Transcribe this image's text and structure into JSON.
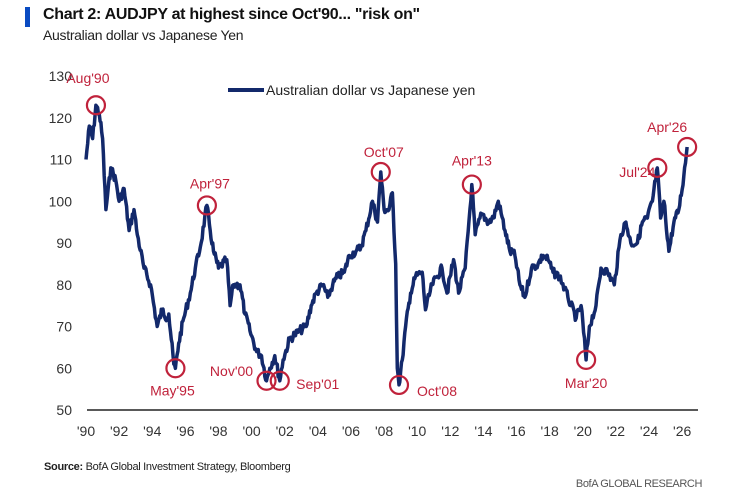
{
  "header": {
    "title": "Chart 2: AUDJPY at highest since Oct'90... \"risk on\"",
    "subtitle": "Australian dollar vs Japanese Yen"
  },
  "footer": {
    "source_label": "Source:",
    "source_text": " BofA Global Investment Strategy, Bloomberg",
    "brand": "BofA GLOBAL RESEARCH"
  },
  "colors": {
    "line": "#13296b",
    "annotation": "#c0223b",
    "accent_bar": "#0a4bc2"
  },
  "chart_data": {
    "type": "line",
    "title": "Chart 2: AUDJPY at highest since Oct'90... \"risk on\"",
    "subtitle": "Australian dollar vs Japanese Yen",
    "xlabel": "",
    "ylabel": "",
    "ylim": [
      50,
      130
    ],
    "xlim": [
      1990,
      2026.5
    ],
    "yticks": [
      50,
      60,
      70,
      80,
      90,
      100,
      110,
      120,
      130
    ],
    "xticks": [
      {
        "x": 1990,
        "label": "'90"
      },
      {
        "x": 1992,
        "label": "'92"
      },
      {
        "x": 1994,
        "label": "'94"
      },
      {
        "x": 1996,
        "label": "'96"
      },
      {
        "x": 1998,
        "label": "'98"
      },
      {
        "x": 2000,
        "label": "'00"
      },
      {
        "x": 2002,
        "label": "'02"
      },
      {
        "x": 2004,
        "label": "'04"
      },
      {
        "x": 2006,
        "label": "'06"
      },
      {
        "x": 2008,
        "label": "'08"
      },
      {
        "x": 2010,
        "label": "'10"
      },
      {
        "x": 2012,
        "label": "'12"
      },
      {
        "x": 2014,
        "label": "'14"
      },
      {
        "x": 2016,
        "label": "'16"
      },
      {
        "x": 2018,
        "label": "'18"
      },
      {
        "x": 2020,
        "label": "'20"
      },
      {
        "x": 2022,
        "label": "'22"
      },
      {
        "x": 2024,
        "label": "'24"
      },
      {
        "x": 2026,
        "label": "'26"
      }
    ],
    "grid": false,
    "legend": "top-center",
    "series": [
      {
        "name": "Australian dollar vs Japanese yen",
        "x": [
          1990.0,
          1990.2,
          1990.4,
          1990.6,
          1990.8,
          1991.0,
          1991.2,
          1991.5,
          1991.8,
          1992.0,
          1992.3,
          1992.6,
          1992.9,
          1993.1,
          1993.5,
          1993.9,
          1994.3,
          1994.6,
          1994.9,
          1995.0,
          1995.3,
          1995.4,
          1995.6,
          1995.9,
          1996.3,
          1996.6,
          1996.9,
          1997.3,
          1997.5,
          1997.7,
          1998.0,
          1998.5,
          1998.7,
          1998.9,
          1999.3,
          1999.6,
          1999.9,
          2000.3,
          2000.6,
          2000.9,
          2001.1,
          2001.4,
          2001.7,
          2001.9,
          2002.3,
          2002.6,
          2002.9,
          2003.3,
          2003.6,
          2003.9,
          2004.3,
          2004.6,
          2004.9,
          2005.2,
          2005.6,
          2005.9,
          2006.3,
          2006.6,
          2006.9,
          2007.3,
          2007.6,
          2007.8,
          2008.0,
          2008.3,
          2008.5,
          2008.7,
          2008.8,
          2008.9,
          2009.1,
          2009.3,
          2009.6,
          2009.9,
          2010.3,
          2010.5,
          2010.9,
          2011.2,
          2011.5,
          2011.8,
          2012.2,
          2012.5,
          2012.9,
          2013.3,
          2013.5,
          2013.9,
          2014.3,
          2014.6,
          2014.9,
          2015.3,
          2015.6,
          2015.9,
          2016.2,
          2016.5,
          2016.9,
          2017.3,
          2017.6,
          2017.9,
          2018.2,
          2018.6,
          2018.9,
          2019.1,
          2019.6,
          2019.9,
          2020.2,
          2020.4,
          2020.8,
          2021.1,
          2021.5,
          2021.9,
          2022.3,
          2022.6,
          2022.9,
          2023.3,
          2023.6,
          2023.9,
          2024.2,
          2024.5,
          2024.7,
          2024.9,
          2025.2,
          2025.5,
          2025.8,
          2026.1,
          2026.3
        ],
        "values": [
          110,
          118,
          115,
          123,
          121,
          115,
          98,
          108,
          105,
          100,
          103,
          93,
          98,
          92,
          84,
          80,
          70,
          74,
          72,
          73,
          61,
          60,
          66,
          72,
          78,
          84,
          89,
          99,
          93,
          88,
          84,
          86,
          75,
          80,
          80,
          73,
          69,
          64,
          63,
          57,
          60,
          63,
          57,
          62,
          67,
          68,
          69,
          70,
          75,
          78,
          80,
          77,
          80,
          82,
          83,
          87,
          88,
          89,
          93,
          100,
          95,
          107,
          98,
          98,
          102,
          85,
          60,
          56,
          62,
          70,
          78,
          82,
          83,
          74,
          80,
          82,
          84,
          78,
          86,
          78,
          84,
          104,
          92,
          97,
          95,
          96,
          100,
          93,
          88,
          87,
          80,
          77,
          84,
          85,
          87,
          86,
          83,
          82,
          79,
          77,
          72,
          75,
          62,
          70,
          75,
          84,
          83,
          80,
          92,
          95,
          90,
          90,
          95,
          96,
          100,
          108,
          96,
          100,
          88,
          95,
          98,
          106,
          113
        ]
      }
    ],
    "annotations": [
      {
        "label": "Aug'90",
        "x": 1990.6,
        "y": 123
      },
      {
        "label": "May'95",
        "x": 1995.4,
        "y": 60
      },
      {
        "label": "Apr'97",
        "x": 1997.3,
        "y": 99
      },
      {
        "label": "Nov'00",
        "x": 2000.9,
        "y": 57
      },
      {
        "label": "Sep'01",
        "x": 2001.7,
        "y": 57
      },
      {
        "label": "Oct'07",
        "x": 2007.8,
        "y": 107
      },
      {
        "label": "Oct'08",
        "x": 2008.9,
        "y": 56
      },
      {
        "label": "Apr'13",
        "x": 2013.3,
        "y": 104
      },
      {
        "label": "Mar'20",
        "x": 2020.2,
        "y": 62
      },
      {
        "label": "Jul'24",
        "x": 2024.5,
        "y": 108
      },
      {
        "label": "Apr'26",
        "x": 2026.3,
        "y": 113
      }
    ]
  }
}
